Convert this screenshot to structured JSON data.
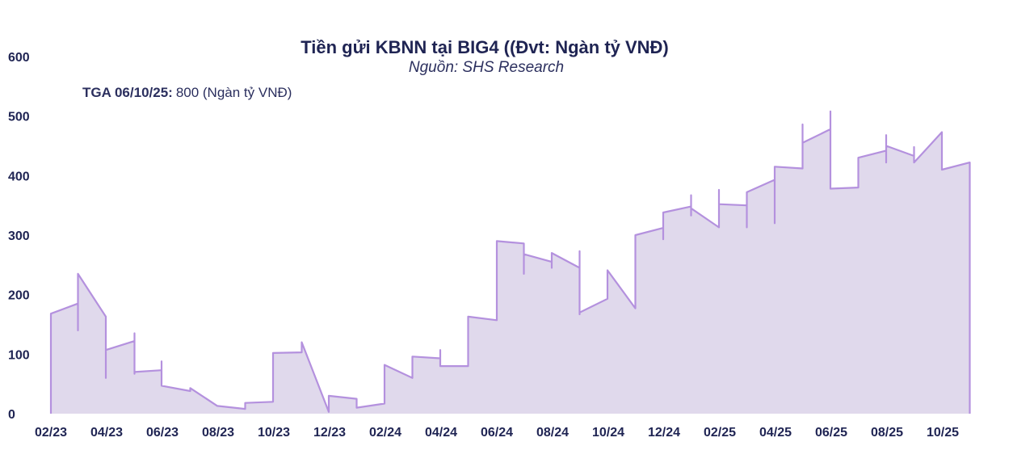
{
  "chart_data": {
    "type": "area",
    "title": "Tiền gửi KBNN tại BIG4 ((Đvt: Ngàn tỷ VNĐ)",
    "subtitle": "Nguồn: SHS Research",
    "annotation": {
      "label": "TGA 06/10/25:",
      "text": "800 (Ngàn tỷ VNĐ)"
    },
    "ylim": [
      0,
      600
    ],
    "yticks": [
      "0",
      "100",
      "200",
      "300",
      "400",
      "500",
      "600"
    ],
    "xticks": [
      {
        "label": "02/23",
        "x": 0
      },
      {
        "label": "04/23",
        "x": 2
      },
      {
        "label": "06/23",
        "x": 4
      },
      {
        "label": "08/23",
        "x": 6
      },
      {
        "label": "10/23",
        "x": 8
      },
      {
        "label": "12/23",
        "x": 10
      },
      {
        "label": "02/24",
        "x": 12
      },
      {
        "label": "04/24",
        "x": 14
      },
      {
        "label": "06/24",
        "x": 16
      },
      {
        "label": "08/24",
        "x": 18
      },
      {
        "label": "10/24",
        "x": 20
      },
      {
        "label": "12/24",
        "x": 22
      },
      {
        "label": "02/25",
        "x": 24
      },
      {
        "label": "04/25",
        "x": 26
      },
      {
        "label": "06/25",
        "x": 28
      },
      {
        "label": "08/25",
        "x": 30
      },
      {
        "label": "10/25",
        "x": 32
      }
    ],
    "xlim": [
      0,
      33
    ],
    "fill_color": "#e0d9ec",
    "line_color": "#b491de",
    "series": [
      {
        "points": [
          [
            0.0,
            0
          ],
          [
            0.0,
            168
          ],
          [
            0.97,
            185
          ],
          [
            0.97,
            140
          ],
          [
            0.97,
            235
          ],
          [
            1.97,
            163
          ],
          [
            1.97,
            60
          ],
          [
            1.97,
            107
          ],
          [
            3.0,
            122
          ],
          [
            3.0,
            135
          ],
          [
            3.0,
            67
          ],
          [
            3.0,
            70
          ],
          [
            3.97,
            73
          ],
          [
            3.97,
            88
          ],
          [
            3.97,
            47
          ],
          [
            5.0,
            38
          ],
          [
            5.0,
            43
          ],
          [
            5.97,
            13
          ],
          [
            6.97,
            8
          ],
          [
            6.97,
            18
          ],
          [
            7.97,
            20
          ],
          [
            7.97,
            102
          ],
          [
            9.0,
            103
          ],
          [
            9.0,
            120
          ],
          [
            9.97,
            3
          ],
          [
            9.97,
            30
          ],
          [
            10.97,
            25
          ],
          [
            10.97,
            10
          ],
          [
            11.97,
            17
          ],
          [
            11.97,
            82
          ],
          [
            12.97,
            60
          ],
          [
            12.97,
            96
          ],
          [
            13.97,
            93
          ],
          [
            13.97,
            107
          ],
          [
            13.97,
            80
          ],
          [
            14.97,
            80
          ],
          [
            14.97,
            163
          ],
          [
            16.0,
            157
          ],
          [
            16.0,
            290
          ],
          [
            16.97,
            286
          ],
          [
            16.97,
            235
          ],
          [
            16.97,
            268
          ],
          [
            17.97,
            255
          ],
          [
            17.97,
            245
          ],
          [
            17.97,
            270
          ],
          [
            18.97,
            245
          ],
          [
            18.97,
            273
          ],
          [
            18.97,
            167
          ],
          [
            18.97,
            170
          ],
          [
            19.97,
            193
          ],
          [
            19.97,
            241
          ],
          [
            20.97,
            177
          ],
          [
            20.97,
            300
          ],
          [
            21.97,
            312
          ],
          [
            21.97,
            293
          ],
          [
            21.97,
            338
          ],
          [
            22.97,
            348
          ],
          [
            22.97,
            367
          ],
          [
            22.97,
            333
          ],
          [
            22.97,
            345
          ],
          [
            23.97,
            313
          ],
          [
            23.97,
            376
          ],
          [
            23.97,
            352
          ],
          [
            24.97,
            350
          ],
          [
            24.97,
            313
          ],
          [
            24.97,
            372
          ],
          [
            25.97,
            393
          ],
          [
            25.97,
            320
          ],
          [
            25.97,
            415
          ],
          [
            26.97,
            412
          ],
          [
            26.97,
            486
          ],
          [
            26.97,
            455
          ],
          [
            27.97,
            478
          ],
          [
            27.97,
            508
          ],
          [
            27.97,
            378
          ],
          [
            28.97,
            380
          ],
          [
            28.97,
            430
          ],
          [
            29.97,
            442
          ],
          [
            29.97,
            468
          ],
          [
            29.97,
            422
          ],
          [
            29.97,
            450
          ],
          [
            30.97,
            433
          ],
          [
            30.97,
            448
          ],
          [
            30.97,
            422
          ],
          [
            31.97,
            473
          ],
          [
            31.97,
            410
          ],
          [
            32.97,
            422
          ],
          [
            32.97,
            0
          ]
        ]
      }
    ]
  }
}
